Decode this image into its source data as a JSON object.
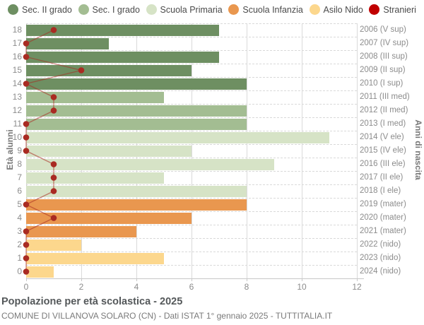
{
  "chart_data": {
    "type": "bar",
    "orientation": "horizontal",
    "title": "Popolazione per età scolastica - 2025",
    "subtitle": "COMUNE DI VILLANOVA SOLARO (CN) - Dati ISTAT 1° gennaio 2025 - TUTTITALIA.IT",
    "left_axis_title": "Età alunni",
    "right_axis_title": "Anni di nascita",
    "xlim": [
      0,
      12
    ],
    "x_ticks": [
      0,
      2,
      4,
      6,
      8,
      10,
      12
    ],
    "grid": "on",
    "legend_position": "top",
    "legend": [
      {
        "label": "Sec. II grado",
        "color": "#6e8f62"
      },
      {
        "label": "Sec. I grado",
        "color": "#a3bd92"
      },
      {
        "label": "Scuola Primaria",
        "color": "#d6e3c6"
      },
      {
        "label": "Scuola Infanzia",
        "color": "#e9974f"
      },
      {
        "label": "Asilo Nido",
        "color": "#fcd78d"
      },
      {
        "label": "Stranieri",
        "color": "#c00000"
      }
    ],
    "stranieri_dot_color": "#a92b22",
    "stranieri_line_color": "rgba(169,43,34,0.55)",
    "rows": [
      {
        "age": "18",
        "year_label": "2006 (V sup)",
        "category": "Sec. II grado",
        "value": 7,
        "stranieri": 1
      },
      {
        "age": "17",
        "year_label": "2007 (IV sup)",
        "category": "Sec. II grado",
        "value": 3,
        "stranieri": 0
      },
      {
        "age": "16",
        "year_label": "2008 (III sup)",
        "category": "Sec. II grado",
        "value": 7,
        "stranieri": 0
      },
      {
        "age": "15",
        "year_label": "2009 (II sup)",
        "category": "Sec. II grado",
        "value": 6,
        "stranieri": 2
      },
      {
        "age": "14",
        "year_label": "2010 (I sup)",
        "category": "Sec. II grado",
        "value": 8,
        "stranieri": 0
      },
      {
        "age": "13",
        "year_label": "2011 (III med)",
        "category": "Sec. I grado",
        "value": 5,
        "stranieri": 1
      },
      {
        "age": "12",
        "year_label": "2012 (II med)",
        "category": "Sec. I grado",
        "value": 8,
        "stranieri": 1
      },
      {
        "age": "11",
        "year_label": "2013 (I med)",
        "category": "Sec. I grado",
        "value": 8,
        "stranieri": 0
      },
      {
        "age": "10",
        "year_label": "2014 (V ele)",
        "category": "Scuola Primaria",
        "value": 11,
        "stranieri": 0
      },
      {
        "age": "9",
        "year_label": "2015 (IV ele)",
        "category": "Scuola Primaria",
        "value": 6,
        "stranieri": 0
      },
      {
        "age": "8",
        "year_label": "2016 (III ele)",
        "category": "Scuola Primaria",
        "value": 9,
        "stranieri": 1
      },
      {
        "age": "7",
        "year_label": "2017 (II ele)",
        "category": "Scuola Primaria",
        "value": 5,
        "stranieri": 1
      },
      {
        "age": "6",
        "year_label": "2018 (I ele)",
        "category": "Scuola Primaria",
        "value": 8,
        "stranieri": 1
      },
      {
        "age": "5",
        "year_label": "2019 (mater)",
        "category": "Scuola Infanzia",
        "value": 8,
        "stranieri": 0
      },
      {
        "age": "4",
        "year_label": "2020 (mater)",
        "category": "Scuola Infanzia",
        "value": 6,
        "stranieri": 1
      },
      {
        "age": "3",
        "year_label": "2021 (mater)",
        "category": "Scuola Infanzia",
        "value": 4,
        "stranieri": 0
      },
      {
        "age": "2",
        "year_label": "2022 (nido)",
        "category": "Asilo Nido",
        "value": 2,
        "stranieri": 0
      },
      {
        "age": "1",
        "year_label": "2023 (nido)",
        "category": "Asilo Nido",
        "value": 5,
        "stranieri": 0
      },
      {
        "age": "0",
        "year_label": "2024 (nido)",
        "category": "Asilo Nido",
        "value": 1,
        "stranieri": 0
      }
    ]
  }
}
